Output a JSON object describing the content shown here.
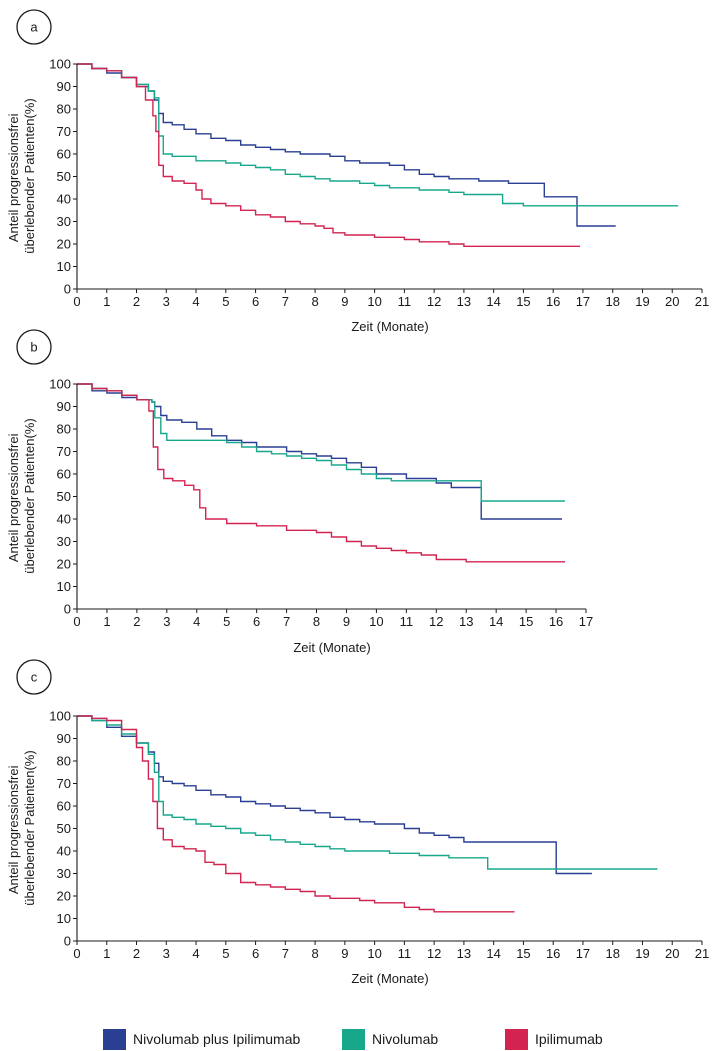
{
  "legend": [
    {
      "label": "Nivolumab plus Ipilimumab",
      "color": "#2a3f94"
    },
    {
      "label": "Nivolumab",
      "color": "#17a88c"
    },
    {
      "label": "Ipilimumab",
      "color": "#d3244f"
    }
  ],
  "chart_data": [
    {
      "type": "line",
      "panel": "a",
      "xlabel": "Zeit (Monate)",
      "ylabel_lines": [
        "Anteil progressionsfrei",
        "überlebender Patienten(%)"
      ],
      "xlim": [
        0,
        21
      ],
      "ylim": [
        0,
        100
      ],
      "xticks": [
        0,
        1,
        2,
        3,
        4,
        5,
        6,
        7,
        8,
        9,
        10,
        11,
        12,
        13,
        14,
        15,
        16,
        17,
        18,
        19,
        20,
        21
      ],
      "yticks": [
        0,
        10,
        20,
        30,
        40,
        50,
        60,
        70,
        80,
        90,
        100
      ],
      "series": [
        {
          "name": "Nivolumab plus Ipilimumab",
          "color": "#2a3f94",
          "x": [
            0,
            0.5,
            1,
            1.5,
            2,
            2.4,
            2.6,
            2.75,
            2.9,
            3.2,
            3.6,
            4,
            4.5,
            5,
            5.5,
            6,
            6.5,
            7,
            7.5,
            8,
            8.5,
            9,
            9.5,
            10,
            10.5,
            11,
            11.5,
            12,
            12.5,
            13,
            13.5,
            14,
            14.5,
            15,
            15.7,
            16,
            16.8,
            17.5,
            18.1
          ],
          "y": [
            100,
            98,
            96,
            94,
            90,
            88,
            84,
            78,
            74,
            73,
            71,
            69,
            67,
            66,
            64,
            63,
            62,
            61,
            60,
            60,
            59,
            57,
            56,
            56,
            55,
            53,
            51,
            50,
            49,
            49,
            48,
            48,
            47,
            47,
            41,
            41,
            28,
            28,
            28
          ]
        },
        {
          "name": "Nivolumab",
          "color": "#17a88c",
          "x": [
            0,
            0.5,
            1,
            1.5,
            2,
            2.4,
            2.6,
            2.75,
            2.9,
            3.2,
            3.6,
            4,
            4.5,
            5,
            5.5,
            6,
            6.5,
            7,
            7.5,
            8,
            8.5,
            9,
            9.5,
            10,
            10.5,
            11,
            11.5,
            12,
            12.5,
            13,
            13.5,
            14,
            14.3,
            15,
            16,
            17,
            18,
            19,
            20.2
          ],
          "y": [
            100,
            98,
            97,
            94,
            91,
            88,
            85,
            68,
            60,
            59,
            59,
            57,
            57,
            56,
            55,
            54,
            53,
            51,
            50,
            49,
            48,
            48,
            47,
            46,
            45,
            45,
            44,
            44,
            43,
            42,
            42,
            42,
            38,
            37,
            37,
            37,
            37,
            37,
            37
          ]
        },
        {
          "name": "Ipilimumab",
          "color": "#d3244f",
          "x": [
            0,
            0.5,
            1,
            1.5,
            2,
            2.3,
            2.55,
            2.65,
            2.75,
            2.9,
            3.2,
            3.6,
            4,
            4.2,
            4.5,
            5,
            5.5,
            6,
            6.5,
            7,
            7.5,
            8,
            8.3,
            8.6,
            9,
            9.5,
            10,
            10.5,
            11,
            11.5,
            12,
            12.5,
            13,
            13.5,
            14,
            15,
            16,
            16.9
          ],
          "y": [
            100,
            98,
            97,
            94,
            90,
            84,
            77,
            70,
            55,
            50,
            48,
            47,
            44,
            40,
            38,
            37,
            35,
            33,
            32,
            30,
            29,
            28,
            27,
            25,
            24,
            24,
            23,
            23,
            22,
            21,
            21,
            20,
            19,
            19,
            19,
            19,
            19,
            19
          ]
        }
      ]
    },
    {
      "type": "line",
      "panel": "b",
      "xlabel": "Zeit (Monate)",
      "ylabel_lines": [
        "Anteil progressionsfrei",
        "überlebender Patienten(%)"
      ],
      "xlim": [
        0,
        17
      ],
      "ylim": [
        0,
        100
      ],
      "xticks": [
        0,
        1,
        2,
        3,
        4,
        5,
        6,
        7,
        8,
        9,
        10,
        11,
        12,
        13,
        14,
        15,
        16,
        17
      ],
      "yticks": [
        0,
        10,
        20,
        30,
        40,
        50,
        60,
        70,
        80,
        90,
        100
      ],
      "series": [
        {
          "name": "Nivolumab plus Ipilimumab",
          "color": "#2a3f94",
          "x": [
            0,
            0.5,
            1,
            1.5,
            2,
            2.5,
            2.6,
            2.8,
            3,
            3.5,
            4,
            4.5,
            5,
            5.5,
            6,
            6.5,
            7,
            7.5,
            8,
            8.5,
            9,
            9.5,
            10,
            10.5,
            11,
            11.5,
            12,
            12.5,
            13,
            13.5,
            14,
            15,
            16.2
          ],
          "y": [
            100,
            97,
            96,
            94,
            93,
            92,
            90,
            86,
            84,
            83,
            80,
            77,
            75,
            74,
            72,
            72,
            70,
            69,
            68,
            67,
            65,
            63,
            60,
            60,
            58,
            58,
            56,
            54,
            54,
            40,
            40,
            40,
            40
          ]
        },
        {
          "name": "Nivolumab",
          "color": "#17a88c",
          "x": [
            0,
            0.5,
            1,
            1.5,
            2,
            2.5,
            2.6,
            2.8,
            3,
            3.5,
            4,
            4.5,
            5,
            5.5,
            6,
            6.5,
            7,
            7.5,
            8,
            8.5,
            9,
            9.5,
            10,
            10.5,
            11,
            11.5,
            12,
            12.5,
            13,
            13.5,
            14,
            15,
            16.3
          ],
          "y": [
            100,
            98,
            97,
            95,
            93,
            92,
            85,
            78,
            75,
            75,
            75,
            75,
            74,
            72,
            70,
            69,
            68,
            67,
            66,
            64,
            62,
            60,
            58,
            57,
            57,
            57,
            57,
            57,
            57,
            48,
            48,
            48,
            48
          ]
        },
        {
          "name": "Ipilimumab",
          "color": "#d3244f",
          "x": [
            0,
            0.5,
            1,
            1.5,
            2,
            2.4,
            2.55,
            2.7,
            2.9,
            3.2,
            3.6,
            3.9,
            4.1,
            4.3,
            5,
            6,
            7,
            7.5,
            8,
            8.5,
            9,
            9.5,
            10,
            10.5,
            11,
            11.5,
            12,
            13,
            14,
            15,
            16.3
          ],
          "y": [
            100,
            98,
            97,
            95,
            93,
            88,
            72,
            62,
            58,
            57,
            55,
            53,
            45,
            40,
            38,
            37,
            35,
            35,
            34,
            32,
            30,
            28,
            27,
            26,
            25,
            24,
            22,
            21,
            21,
            21,
            21
          ]
        }
      ]
    },
    {
      "type": "line",
      "panel": "c",
      "xlabel": "Zeit (Monate)",
      "ylabel_lines": [
        "Anteil progressionsfrei",
        "überlebender Patienten(%)"
      ],
      "xlim": [
        0,
        21
      ],
      "ylim": [
        0,
        100
      ],
      "xticks": [
        0,
        1,
        2,
        3,
        4,
        5,
        6,
        7,
        8,
        9,
        10,
        11,
        12,
        13,
        14,
        15,
        16,
        17,
        18,
        19,
        20,
        21
      ],
      "yticks": [
        0,
        10,
        20,
        30,
        40,
        50,
        60,
        70,
        80,
        90,
        100
      ],
      "series": [
        {
          "name": "Nivolumab plus Ipilimumab",
          "color": "#2a3f94",
          "x": [
            0,
            0.5,
            1,
            1.5,
            2,
            2.4,
            2.6,
            2.75,
            2.9,
            3.2,
            3.6,
            4,
            4.5,
            5,
            5.5,
            6,
            6.5,
            7,
            7.5,
            8,
            8.5,
            9,
            9.5,
            10,
            10.5,
            11,
            11.5,
            12,
            12.5,
            13,
            13.5,
            14,
            14.5,
            15,
            15.5,
            16.1,
            16.5,
            17.3
          ],
          "y": [
            100,
            98,
            95,
            91,
            88,
            84,
            79,
            73,
            71,
            70,
            69,
            67,
            65,
            64,
            62,
            61,
            60,
            59,
            58,
            57,
            55,
            54,
            53,
            52,
            52,
            50,
            48,
            47,
            46,
            44,
            44,
            44,
            44,
            44,
            44,
            30,
            30,
            30
          ]
        },
        {
          "name": "Nivolumab",
          "color": "#17a88c",
          "x": [
            0,
            0.5,
            1,
            1.5,
            2,
            2.4,
            2.6,
            2.75,
            2.9,
            3.2,
            3.6,
            4,
            4.5,
            5,
            5.5,
            6,
            6.5,
            7,
            7.5,
            8,
            8.5,
            9,
            9.5,
            10,
            10.5,
            11,
            11.5,
            12,
            12.5,
            13,
            13.5,
            13.8,
            14.5,
            15,
            16,
            17,
            18,
            19,
            19.5
          ],
          "y": [
            100,
            98,
            96,
            92,
            88,
            83,
            75,
            62,
            56,
            55,
            54,
            52,
            51,
            50,
            48,
            47,
            45,
            44,
            43,
            42,
            41,
            40,
            40,
            40,
            39,
            39,
            38,
            38,
            37,
            37,
            37,
            32,
            32,
            32,
            32,
            32,
            32,
            32,
            32
          ]
        },
        {
          "name": "Ipilimumab",
          "color": "#d3244f",
          "x": [
            0,
            0.5,
            1,
            1.5,
            2,
            2.2,
            2.4,
            2.55,
            2.7,
            2.9,
            3.2,
            3.6,
            4,
            4.3,
            4.6,
            5,
            5.5,
            6,
            6.5,
            7,
            7.5,
            8,
            8.5,
            9,
            9.5,
            10,
            10.5,
            11,
            11.5,
            12,
            12.5,
            13,
            13.5,
            14,
            14.7
          ],
          "y": [
            100,
            99,
            98,
            94,
            86,
            80,
            72,
            62,
            50,
            45,
            42,
            41,
            40,
            35,
            34,
            30,
            26,
            25,
            24,
            23,
            22,
            20,
            19,
            19,
            18,
            17,
            17,
            15,
            14,
            13,
            13,
            13,
            13,
            13,
            13
          ]
        }
      ]
    }
  ]
}
